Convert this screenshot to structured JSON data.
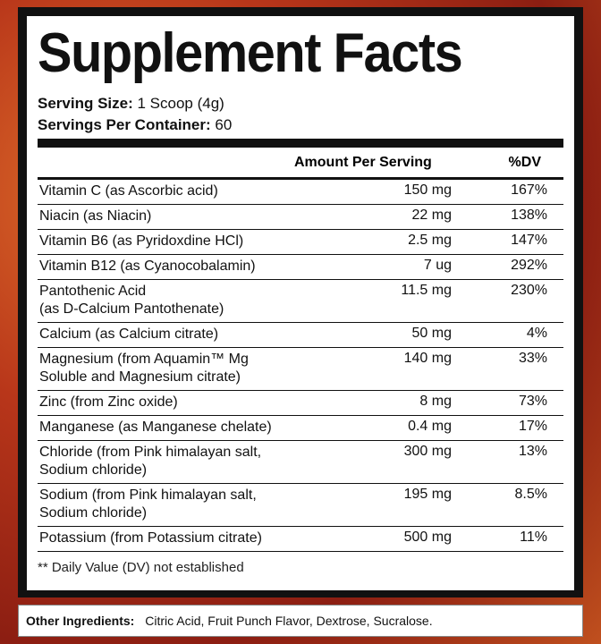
{
  "header": {
    "title": "Supplement Facts",
    "serving_size_label": "Serving Size:",
    "serving_size": "1 Scoop (4g)",
    "servings_label": "Servings Per Container:",
    "servings": "60"
  },
  "table": {
    "columns": [
      "Amount Per Serving",
      "%DV"
    ],
    "rows": [
      {
        "name": [
          "Vitamin C (as Ascorbic acid)"
        ],
        "amount": "150 mg",
        "dv": "167%"
      },
      {
        "name": [
          "Niacin (as Niacin)"
        ],
        "amount": "22 mg",
        "dv": "138%"
      },
      {
        "name": [
          "Vitamin B6 (as Pyridoxdine HCl)"
        ],
        "amount": "2.5 mg",
        "dv": "147%"
      },
      {
        "name": [
          "Vitamin B12 (as Cyanocobalamin)"
        ],
        "amount": "7 ug",
        "dv": "292%"
      },
      {
        "name": [
          "Pantothenic Acid",
          "(as D-Calcium Pantothenate)"
        ],
        "amount": "11.5 mg",
        "dv": "230%"
      },
      {
        "name": [
          "Calcium (as Calcium citrate)"
        ],
        "amount": "50 mg",
        "dv": "4%"
      },
      {
        "name": [
          "Magnesium (from Aquamin™ Mg",
          "Soluble and Magnesium citrate)"
        ],
        "amount": "140 mg",
        "dv": "33%"
      },
      {
        "name": [
          "Zinc (from Zinc oxide)"
        ],
        "amount": "8 mg",
        "dv": "73%"
      },
      {
        "name": [
          "Manganese (as Manganese chelate)"
        ],
        "amount": "0.4 mg",
        "dv": "17%"
      },
      {
        "name": [
          "Chloride (from Pink himalayan salt,",
          "Sodium chloride)"
        ],
        "amount": "300 mg",
        "dv": "13%"
      },
      {
        "name": [
          "Sodium (from Pink himalayan salt,",
          "Sodium chloride)"
        ],
        "amount": "195 mg",
        "dv": "8.5%"
      },
      {
        "name": [
          "Potassium (from Potassium citrate)"
        ],
        "amount": "500 mg",
        "dv": "11%"
      }
    ]
  },
  "footnote": "** Daily Value (DV) not established",
  "other_ingredients": {
    "label": "Other Ingredients:",
    "text": "Citric Acid, Fruit Punch Flavor, Dextrose, Sucralose."
  }
}
